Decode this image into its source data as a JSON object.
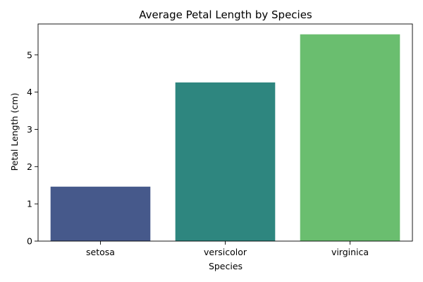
{
  "chart_data": {
    "type": "bar",
    "title": "Average Petal Length by Species",
    "xlabel": "Species",
    "ylabel": "Petal Length (cm)",
    "categories": [
      "setosa",
      "versicolor",
      "virginica"
    ],
    "values": [
      1.462,
      4.26,
      5.552
    ],
    "colors": [
      "#46598b",
      "#2e867f",
      "#6abe6f"
    ],
    "ylim": [
      0,
      5.83
    ],
    "yticks": [
      0,
      1,
      2,
      3,
      4,
      5
    ],
    "grid": false,
    "legend": "none"
  }
}
